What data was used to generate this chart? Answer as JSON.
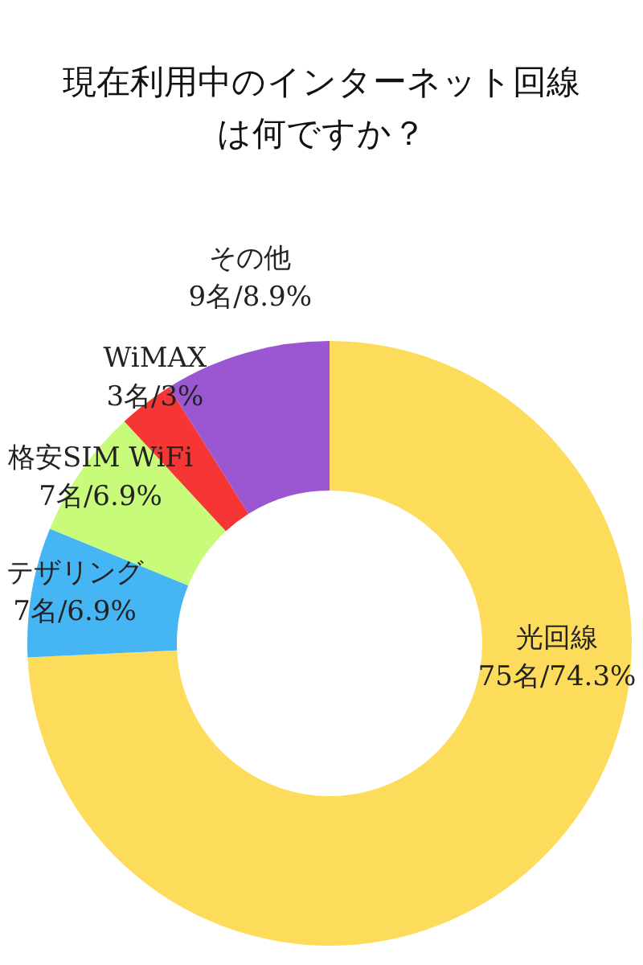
{
  "chart_data": {
    "type": "donut",
    "title": "現在利用中のインターネット回線は何ですか？",
    "categories": [
      "光回線",
      "テザリング",
      "格安SIM WiFi",
      "WiMAX",
      "その他"
    ],
    "values": [
      75,
      7,
      7,
      3,
      9
    ],
    "value_labels": [
      "75名/74.3%",
      "7名/6.9%",
      "7名/6.9%",
      "3名/3%",
      "9名/8.9%"
    ],
    "colors": [
      "#fddc5c",
      "#45b6f3",
      "#c8fb7a",
      "#f63535",
      "#9a57d1"
    ]
  }
}
